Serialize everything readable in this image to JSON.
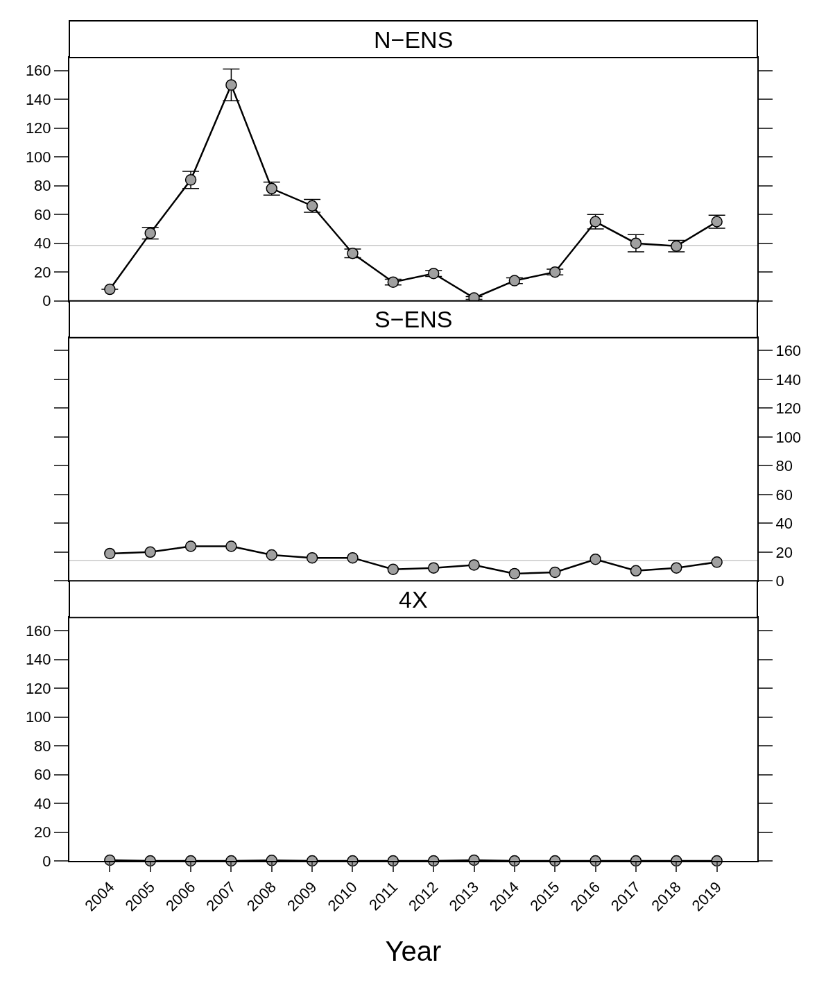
{
  "chart_data": [
    {
      "type": "line",
      "title": "N−ENS",
      "categories": [
        "2004",
        "2005",
        "2006",
        "2007",
        "2008",
        "2009",
        "2010",
        "2011",
        "2012",
        "2013",
        "2014",
        "2015",
        "2016",
        "2017",
        "2018",
        "2019"
      ],
      "series": [
        {
          "color": "#000000",
          "values": [
            8,
            47,
            84,
            150,
            78,
            66,
            33,
            13,
            19,
            2,
            14,
            20,
            55,
            40,
            38,
            55
          ],
          "errors": [
            null,
            4,
            6,
            11,
            4.5,
            4.5,
            3,
            2,
            2,
            1,
            2,
            2,
            5,
            6,
            4,
            4.5
          ]
        }
      ],
      "ylim": [
        0,
        169
      ],
      "yticks": [
        0,
        20,
        40,
        60,
        80,
        100,
        120,
        140,
        160
      ],
      "ref_lines": [
        {
          "axis": "y",
          "value": 38.5,
          "color": "#c8c8c8"
        }
      ],
      "marker": "circle",
      "tick_labels": "y"
    },
    {
      "type": "line",
      "title": "S−ENS",
      "categories": [
        "2004",
        "2005",
        "2006",
        "2007",
        "2008",
        "2009",
        "2010",
        "2011",
        "2012",
        "2013",
        "2014",
        "2015",
        "2016",
        "2017",
        "2018",
        "2019"
      ],
      "series": [
        {
          "color": "#000000",
          "values": [
            19,
            20,
            24,
            24,
            18,
            16,
            16,
            8,
            9,
            11,
            5,
            6,
            15,
            7,
            9,
            13
          ]
        }
      ],
      "ylim": [
        0,
        169
      ],
      "yticks": [
        0,
        20,
        40,
        60,
        80,
        100,
        120,
        140,
        160
      ],
      "ref_lines": [
        {
          "axis": "y",
          "value": 14,
          "color": "#c8c8c8"
        }
      ],
      "marker": "circle",
      "tick_labels": "y"
    },
    {
      "type": "line",
      "title": "4X",
      "xlabel": "Year",
      "categories": [
        "2004",
        "2005",
        "2006",
        "2007",
        "2008",
        "2009",
        "2010",
        "2011",
        "2012",
        "2013",
        "2014",
        "2015",
        "2016",
        "2017",
        "2018",
        "2019"
      ],
      "series": [
        {
          "color": "#000000",
          "values": [
            0.5,
            0,
            0,
            0,
            0.3,
            0,
            0,
            0,
            0,
            0.5,
            0,
            0,
            0,
            0,
            0,
            0
          ]
        }
      ],
      "ylim": [
        0,
        169
      ],
      "yticks": [
        0,
        20,
        40,
        60,
        80,
        100,
        120,
        140,
        160
      ],
      "marker": "circle"
    }
  ]
}
